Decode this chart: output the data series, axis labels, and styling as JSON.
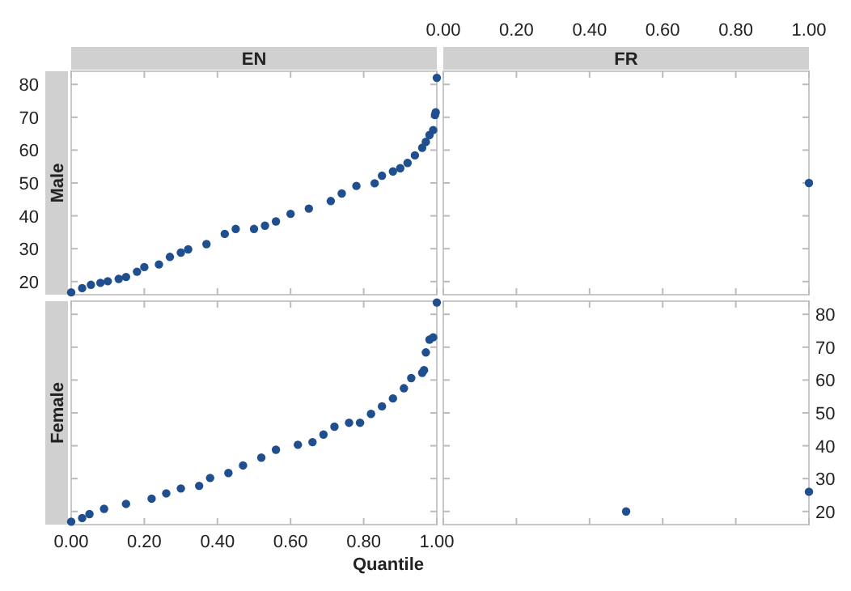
{
  "chart_data": [
    {
      "type": "scatter",
      "title": "EN",
      "ylabel": "Male",
      "marker": "circle",
      "tick_labels": "y",
      "xlim": [
        0,
        1
      ],
      "ylim": [
        16,
        84
      ],
      "xticks": [
        0,
        0.2,
        0.4,
        0.6,
        0.8,
        1
      ],
      "yticks": [
        20,
        30,
        40,
        50,
        60,
        70,
        80
      ],
      "x": [
        0,
        0.03,
        0.054,
        0.08,
        0.1,
        0.13,
        0.15,
        0.18,
        0.2,
        0.24,
        0.27,
        0.3,
        0.32,
        0.37,
        0.42,
        0.45,
        0.5,
        0.53,
        0.56,
        0.6,
        0.65,
        0.71,
        0.74,
        0.78,
        0.83,
        0.85,
        0.88,
        0.9,
        0.92,
        0.94,
        0.96,
        0.97,
        0.98,
        0.99,
        0.995,
        0.997,
        1
      ],
      "series": [
        {
          "color": "#1f4f8f",
          "values": [
            16.7,
            18,
            19,
            19.6,
            20.1,
            20.8,
            21.4,
            23,
            24.4,
            25.2,
            27.5,
            28.8,
            29.8,
            31.4,
            34.5,
            36,
            36,
            37,
            38.3,
            40.6,
            42.2,
            44.5,
            46.8,
            49.1,
            49.9,
            52.2,
            53.5,
            54.5,
            56.1,
            58.4,
            60.7,
            62.5,
            64.6,
            66.1,
            70.7,
            71.5,
            82
          ]
        }
      ]
    },
    {
      "type": "scatter",
      "title": "FR",
      "marker": "circle",
      "tick_labels": "x",
      "xlim": [
        0,
        1
      ],
      "ylim": [
        16,
        84
      ],
      "xticks": [
        {
          "value": 0,
          "label": "0.00"
        },
        {
          "value": 0.2,
          "label": "0.20"
        },
        {
          "value": 0.4,
          "label": "0.40"
        },
        {
          "value": 0.6,
          "label": "0.60"
        },
        {
          "value": 0.8,
          "label": "0.80"
        },
        {
          "value": 1,
          "label": "1.00"
        }
      ],
      "yticks": [
        20,
        30,
        40,
        50,
        60,
        70,
        80
      ],
      "x": [
        1
      ],
      "series": [
        {
          "color": "#1f4f8f",
          "values": [
            50
          ]
        }
      ]
    },
    {
      "type": "scatter",
      "ylabel": "Female",
      "xlabel": "Quantile",
      "marker": "circle",
      "tick_labels": "x",
      "xlim": [
        0,
        1
      ],
      "ylim": [
        16,
        84
      ],
      "xticks": [
        {
          "value": 0,
          "label": "0.00"
        },
        {
          "value": 0.2,
          "label": "0.20"
        },
        {
          "value": 0.4,
          "label": "0.40"
        },
        {
          "value": 0.6,
          "label": "0.60"
        },
        {
          "value": 0.8,
          "label": "0.80"
        },
        {
          "value": 1,
          "label": "1.00"
        }
      ],
      "yticks": [
        20,
        30,
        40,
        50,
        60,
        70,
        80
      ],
      "x": [
        0,
        0.03,
        0.05,
        0.09,
        0.15,
        0.22,
        0.26,
        0.3,
        0.35,
        0.38,
        0.43,
        0.47,
        0.52,
        0.56,
        0.62,
        0.66,
        0.69,
        0.72,
        0.76,
        0.79,
        0.82,
        0.85,
        0.88,
        0.91,
        0.93,
        0.96,
        0.965,
        0.97,
        0.98,
        0.99,
        1
      ],
      "series": [
        {
          "color": "#1f4f8f",
          "values": [
            16.9,
            18,
            19.2,
            20.8,
            22.3,
            23.9,
            25.5,
            27,
            27.8,
            30.2,
            31.7,
            34,
            36.4,
            38.8,
            40.3,
            41.1,
            43.4,
            45.8,
            47,
            47,
            49.7,
            52,
            54.4,
            57.5,
            60.6,
            62.2,
            63,
            68.4,
            72.3,
            73,
            83.6
          ]
        }
      ]
    },
    {
      "type": "scatter",
      "marker": "circle",
      "tick_labels": "y",
      "xlim": [
        0,
        1
      ],
      "ylim": [
        16,
        84
      ],
      "xticks": [
        0,
        0.2,
        0.4,
        0.6,
        0.8,
        1
      ],
      "yticks": [
        20,
        30,
        40,
        50,
        60,
        70,
        80
      ],
      "x": [
        0.5,
        1
      ],
      "series": [
        {
          "color": "#1f4f8f",
          "values": [
            20,
            26
          ]
        }
      ]
    }
  ]
}
